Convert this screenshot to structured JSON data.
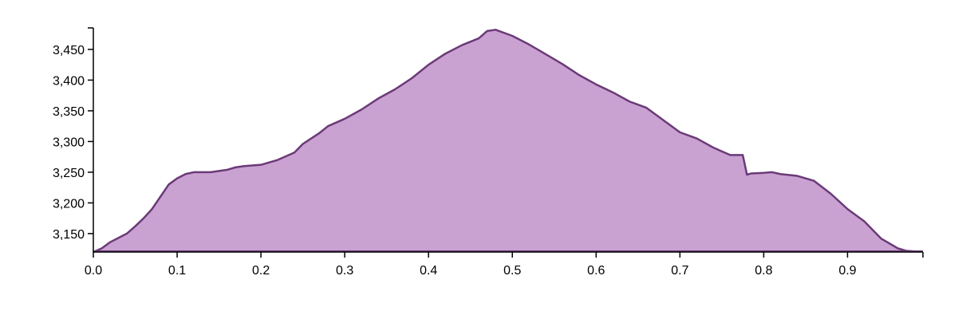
{
  "chart_data": {
    "type": "area",
    "title": "",
    "xlabel": "",
    "ylabel": "",
    "xlim": [
      0,
      0.99
    ],
    "ylim": [
      3120,
      3485
    ],
    "grid": false,
    "legend": "none",
    "x_ticks": [
      0.0,
      0.1,
      0.2,
      0.3,
      0.4,
      0.5,
      0.6,
      0.7,
      0.8,
      0.9
    ],
    "x_tick_labels": [
      "0.0",
      "0.1",
      "0.2",
      "0.3",
      "0.4",
      "0.5",
      "0.6",
      "0.7",
      "0.8",
      "0.9"
    ],
    "y_ticks": [
      3150,
      3200,
      3250,
      3300,
      3350,
      3400,
      3450
    ],
    "y_tick_labels": [
      "3,150",
      "3,200",
      "3,250",
      "3,300",
      "3,350",
      "3,400",
      "3,450"
    ],
    "colors": {
      "fill": "#c9a2d2",
      "stroke": "#6b3a78",
      "axis": "#000000"
    },
    "series": [
      {
        "x": [
          0.0,
          0.01,
          0.02,
          0.03,
          0.04,
          0.05,
          0.06,
          0.07,
          0.08,
          0.09,
          0.1,
          0.11,
          0.12,
          0.14,
          0.16,
          0.17,
          0.18,
          0.2,
          0.22,
          0.24,
          0.25,
          0.27,
          0.28,
          0.3,
          0.32,
          0.34,
          0.36,
          0.38,
          0.4,
          0.42,
          0.44,
          0.46,
          0.47,
          0.48,
          0.5,
          0.52,
          0.54,
          0.56,
          0.58,
          0.6,
          0.62,
          0.64,
          0.66,
          0.68,
          0.7,
          0.72,
          0.74,
          0.76,
          0.775,
          0.78,
          0.785,
          0.8,
          0.81,
          0.82,
          0.84,
          0.86,
          0.88,
          0.9,
          0.92,
          0.94,
          0.96,
          0.97,
          0.98,
          0.99
        ],
        "y": [
          3120,
          3126,
          3136,
          3143,
          3150,
          3162,
          3175,
          3190,
          3210,
          3230,
          3240,
          3247,
          3250,
          3250,
          3254,
          3258,
          3260,
          3262,
          3270,
          3282,
          3296,
          3314,
          3325,
          3337,
          3352,
          3370,
          3385,
          3403,
          3425,
          3443,
          3457,
          3468,
          3480,
          3482,
          3472,
          3458,
          3442,
          3426,
          3408,
          3393,
          3380,
          3365,
          3355,
          3335,
          3315,
          3305,
          3290,
          3278,
          3278,
          3246,
          3248,
          3249,
          3250,
          3247,
          3244,
          3236,
          3215,
          3190,
          3170,
          3142,
          3126,
          3122,
          3121,
          3121
        ]
      }
    ]
  }
}
